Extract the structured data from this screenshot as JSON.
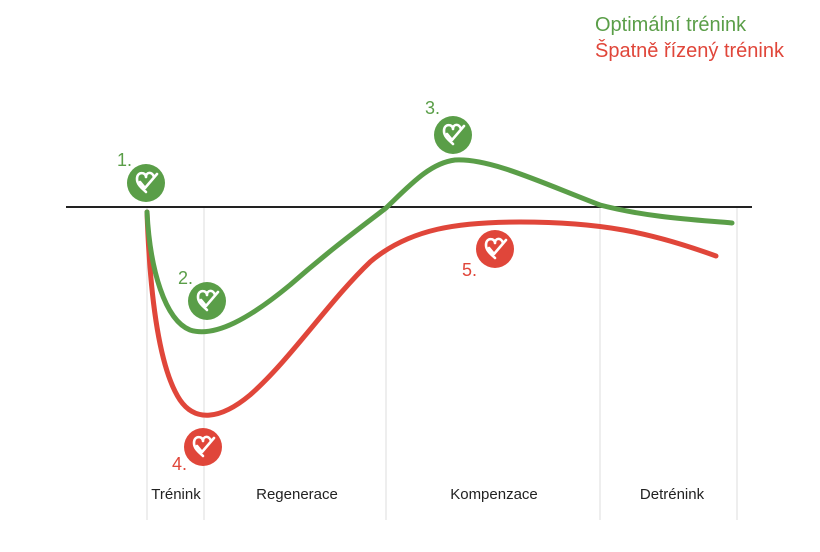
{
  "colors": {
    "optimal": "#5a9e48",
    "poor": "#e0463a",
    "baseline": "#222222",
    "divider": "#dddddd",
    "phase_label": "#222222"
  },
  "legend": {
    "optimal_label": "Optimální trénink",
    "poor_label": "Špatně řízený trénink"
  },
  "phases": [
    "Trénink",
    "Regenerace",
    "Kompenzace",
    "Detrénink"
  ],
  "markers": [
    {
      "number": "1.",
      "series": "optimal",
      "icon": "heart-check-icon"
    },
    {
      "number": "2.",
      "series": "optimal",
      "icon": "heart-check-icon"
    },
    {
      "number": "3.",
      "series": "optimal",
      "icon": "heart-check-icon"
    },
    {
      "number": "4.",
      "series": "poor",
      "icon": "heart-check-icon"
    },
    {
      "number": "5.",
      "series": "poor",
      "icon": "heart-check-icon"
    }
  ]
}
